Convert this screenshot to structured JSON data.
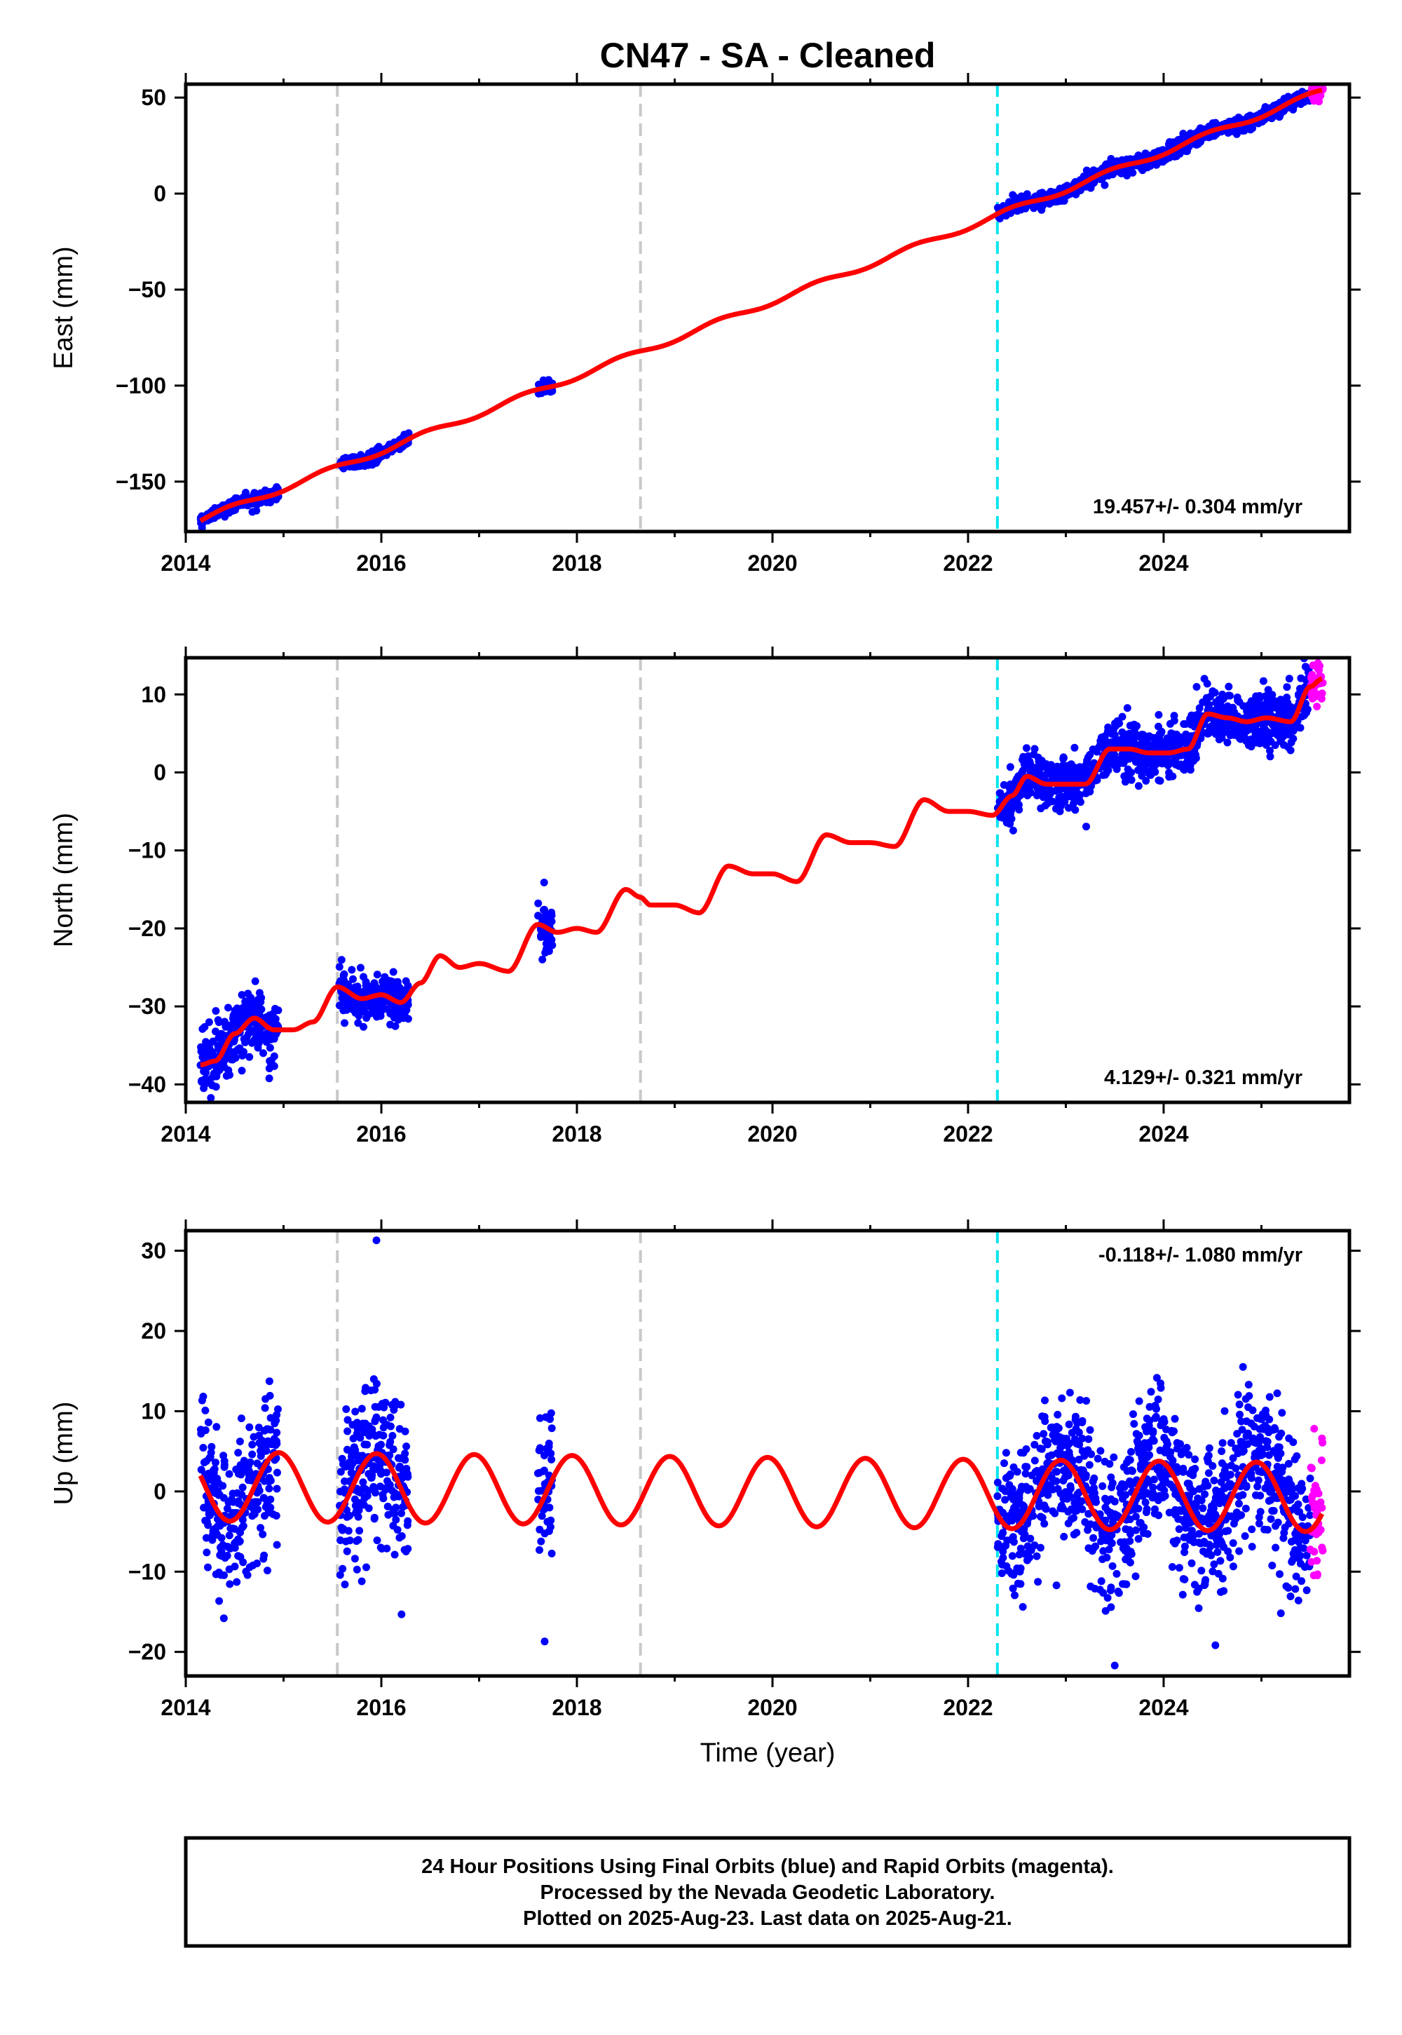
{
  "title": "CN47  - SA - Cleaned",
  "footer": {
    "line1": "24 Hour Positions Using Final Orbits (blue) and Rapid Orbits (magenta).",
    "line2": "Processed by the Nevada Geodetic Laboratory.",
    "line3": "Plotted on 2025-Aug-23. Last data on 2025-Aug-21."
  },
  "colors": {
    "final_orbits": "#0000ff",
    "rapid_orbits": "#ff00ff",
    "model": "#ff0000",
    "equipment_change": "#c8c8c8",
    "earthquake": "#00e5ee",
    "frame": "#000000"
  },
  "chart_data": [
    {
      "type": "scatter",
      "name": "east",
      "ylabel": "East (mm)",
      "xlabel": "",
      "xlim": [
        2014.0,
        2025.9
      ],
      "ylim": [
        -176,
        57
      ],
      "xticks": [
        "2014",
        "2016",
        "2018",
        "2020",
        "2022",
        "2024"
      ],
      "yticks": [
        "50",
        "0",
        "−50",
        "−100",
        "−150"
      ],
      "ytick_values": [
        50,
        0,
        -50,
        -100,
        -150
      ],
      "rate_label": "19.457+/- 0.304 mm/yr",
      "rate": 19.457,
      "rate_position": "bottom-right",
      "model_line": "fit",
      "seasonal_amplitude": 1.5,
      "data_segments": [
        {
          "start": 2014.15,
          "end": 2014.95,
          "offset": 0,
          "noise": 1.5
        },
        {
          "start": 2015.57,
          "end": 2016.28,
          "offset": 0,
          "noise": 1.5
        },
        {
          "start": 2017.6,
          "end": 2017.75,
          "offset": 0,
          "noise": 1.5
        },
        {
          "start": 2022.3,
          "end": 2025.5,
          "offset": 0,
          "noise": 1.8
        }
      ],
      "rapid_segment": {
        "start": 2025.5,
        "end": 2025.63
      },
      "model_anchor": {
        "year": 2014.15,
        "value": -170
      }
    },
    {
      "type": "scatter",
      "name": "north",
      "ylabel": "North (mm)",
      "xlabel": "",
      "xlim": [
        2014.0,
        2025.9
      ],
      "ylim": [
        -42.3,
        14.7
      ],
      "xticks": [
        "2014",
        "2016",
        "2018",
        "2020",
        "2022",
        "2024"
      ],
      "yticks": [
        "10",
        "0",
        "−10",
        "−20",
        "−30",
        "−40"
      ],
      "ytick_values": [
        10,
        0,
        -10,
        -20,
        -30,
        -40
      ],
      "rate_label": "4.129+/- 0.321 mm/yr",
      "rate": 4.129,
      "rate_position": "bottom-right",
      "model_points": [
        [
          2014.15,
          -37.5
        ],
        [
          2014.3,
          -37
        ],
        [
          2014.5,
          -33.5
        ],
        [
          2014.7,
          -31.5
        ],
        [
          2014.9,
          -33
        ],
        [
          2015.1,
          -33
        ],
        [
          2015.3,
          -32
        ],
        [
          2015.55,
          -27.5
        ],
        [
          2015.8,
          -29
        ],
        [
          2016.0,
          -28.5
        ],
        [
          2016.2,
          -29.5
        ],
        [
          2016.4,
          -27
        ],
        [
          2016.6,
          -23.5
        ],
        [
          2016.8,
          -25
        ],
        [
          2017.0,
          -24.5
        ],
        [
          2017.3,
          -25.5
        ],
        [
          2017.6,
          -19.5
        ],
        [
          2017.8,
          -20.5
        ],
        [
          2018.0,
          -20
        ],
        [
          2018.2,
          -20.5
        ],
        [
          2018.5,
          -15
        ],
        [
          2018.65,
          -16
        ],
        [
          2018.75,
          -17
        ],
        [
          2019.0,
          -17
        ],
        [
          2019.25,
          -18
        ],
        [
          2019.55,
          -12
        ],
        [
          2019.8,
          -13
        ],
        [
          2020.0,
          -13
        ],
        [
          2020.25,
          -14
        ],
        [
          2020.55,
          -8
        ],
        [
          2020.8,
          -9
        ],
        [
          2021.0,
          -9
        ],
        [
          2021.25,
          -9.5
        ],
        [
          2021.55,
          -3.5
        ],
        [
          2021.8,
          -5
        ],
        [
          2022.0,
          -5
        ],
        [
          2022.25,
          -5.5
        ],
        [
          2022.45,
          -3
        ],
        [
          2022.6,
          -0.5
        ],
        [
          2022.8,
          -1.5
        ],
        [
          2023.0,
          -1.5
        ],
        [
          2023.2,
          -1.5
        ],
        [
          2023.45,
          3
        ],
        [
          2023.65,
          3
        ],
        [
          2023.85,
          2.5
        ],
        [
          2024.05,
          2.5
        ],
        [
          2024.25,
          3
        ],
        [
          2024.45,
          7.5
        ],
        [
          2024.65,
          7
        ],
        [
          2024.85,
          6.5
        ],
        [
          2025.05,
          7
        ],
        [
          2025.3,
          6.5
        ],
        [
          2025.5,
          11
        ],
        [
          2025.62,
          12
        ]
      ],
      "data_segments": [
        {
          "start": 2014.15,
          "end": 2014.95,
          "noise": 2.0
        },
        {
          "start": 2015.57,
          "end": 2016.28,
          "noise": 1.5
        },
        {
          "start": 2017.6,
          "end": 2017.75,
          "noise": 1.5
        },
        {
          "start": 2022.3,
          "end": 2025.5,
          "noise": 1.7
        }
      ],
      "rapid_segment": {
        "start": 2025.5,
        "end": 2025.63
      }
    },
    {
      "type": "scatter",
      "name": "up",
      "ylabel": "Up (mm)",
      "xlabel": "Time (year)",
      "xlim": [
        2014.0,
        2025.9
      ],
      "ylim": [
        -23,
        32.5
      ],
      "xticks": [
        "2014",
        "2016",
        "2018",
        "2020",
        "2022",
        "2024"
      ],
      "yticks": [
        "30",
        "20",
        "10",
        "0",
        "−10",
        "−20"
      ],
      "ytick_values": [
        30,
        20,
        10,
        0,
        -10,
        -20
      ],
      "rate_label": "-0.118+/- 1.080 mm/yr",
      "rate": -0.118,
      "rate_position": "top-right",
      "seasonal_amplitude": 4.3,
      "data_segments": [
        {
          "start": 2014.15,
          "end": 2014.95,
          "noise": 4.5
        },
        {
          "start": 2015.57,
          "end": 2016.28,
          "noise": 5.0
        },
        {
          "start": 2017.6,
          "end": 2017.75,
          "noise": 4.5
        },
        {
          "start": 2022.3,
          "end": 2025.5,
          "noise": 4.5
        }
      ],
      "rapid_segment": {
        "start": 2025.5,
        "end": 2025.63
      },
      "outliers": [
        [
          2015.95,
          31.3
        ],
        [
          2017.67,
          -18.7
        ],
        [
          2023.5,
          -21.7
        ],
        [
          2015.8,
          -11.2
        ]
      ]
    }
  ],
  "vertical_lines": [
    {
      "year": 2015.55,
      "kind": "equipment_change"
    },
    {
      "year": 2018.65,
      "kind": "equipment_change"
    },
    {
      "year": 2022.3,
      "kind": "earthquake"
    }
  ]
}
